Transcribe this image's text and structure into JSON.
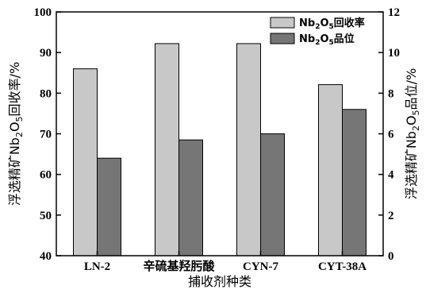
{
  "chart_data": {
    "type": "bar",
    "categories": [
      "LN-2",
      "辛硫基羟肟酸",
      "CYN-7",
      "CYT-38A"
    ],
    "series": [
      {
        "name": "Nb2O5回收率",
        "axis": "left",
        "color": "#c8c8c8",
        "values": [
          86,
          92.2,
          92.2,
          82.1
        ]
      },
      {
        "name": "Nb2O5品位",
        "axis": "right",
        "color": "#767676",
        "values": [
          4.8,
          5.7,
          6.0,
          7.2
        ]
      }
    ],
    "legend_labels": [
      {
        "pre": "Nb",
        "sub1": "2",
        "mid": "O",
        "sub2": "5",
        "post": "回收率"
      },
      {
        "pre": "Nb",
        "sub1": "2",
        "mid": "O",
        "sub2": "5",
        "post": "品位"
      }
    ],
    "xlabel": "捕收剂种类",
    "ylabel_left": {
      "pre": "浮选精矿Nb",
      "sub1": "2",
      "mid": "O",
      "sub2": "5",
      "post": "回收率/%"
    },
    "ylabel_right": {
      "pre": "浮选精矿Nb",
      "sub1": "2",
      "mid": "O",
      "sub2": "5",
      "post": "品位/%"
    },
    "ylim_left": [
      40,
      100
    ],
    "yticks_left": [
      40,
      50,
      60,
      70,
      80,
      90,
      100
    ],
    "ylim_right": [
      0,
      12
    ],
    "yticks_right": [
      0,
      2,
      4,
      6,
      8,
      10,
      12
    ],
    "grid": false,
    "legend_position": "top-right"
  }
}
